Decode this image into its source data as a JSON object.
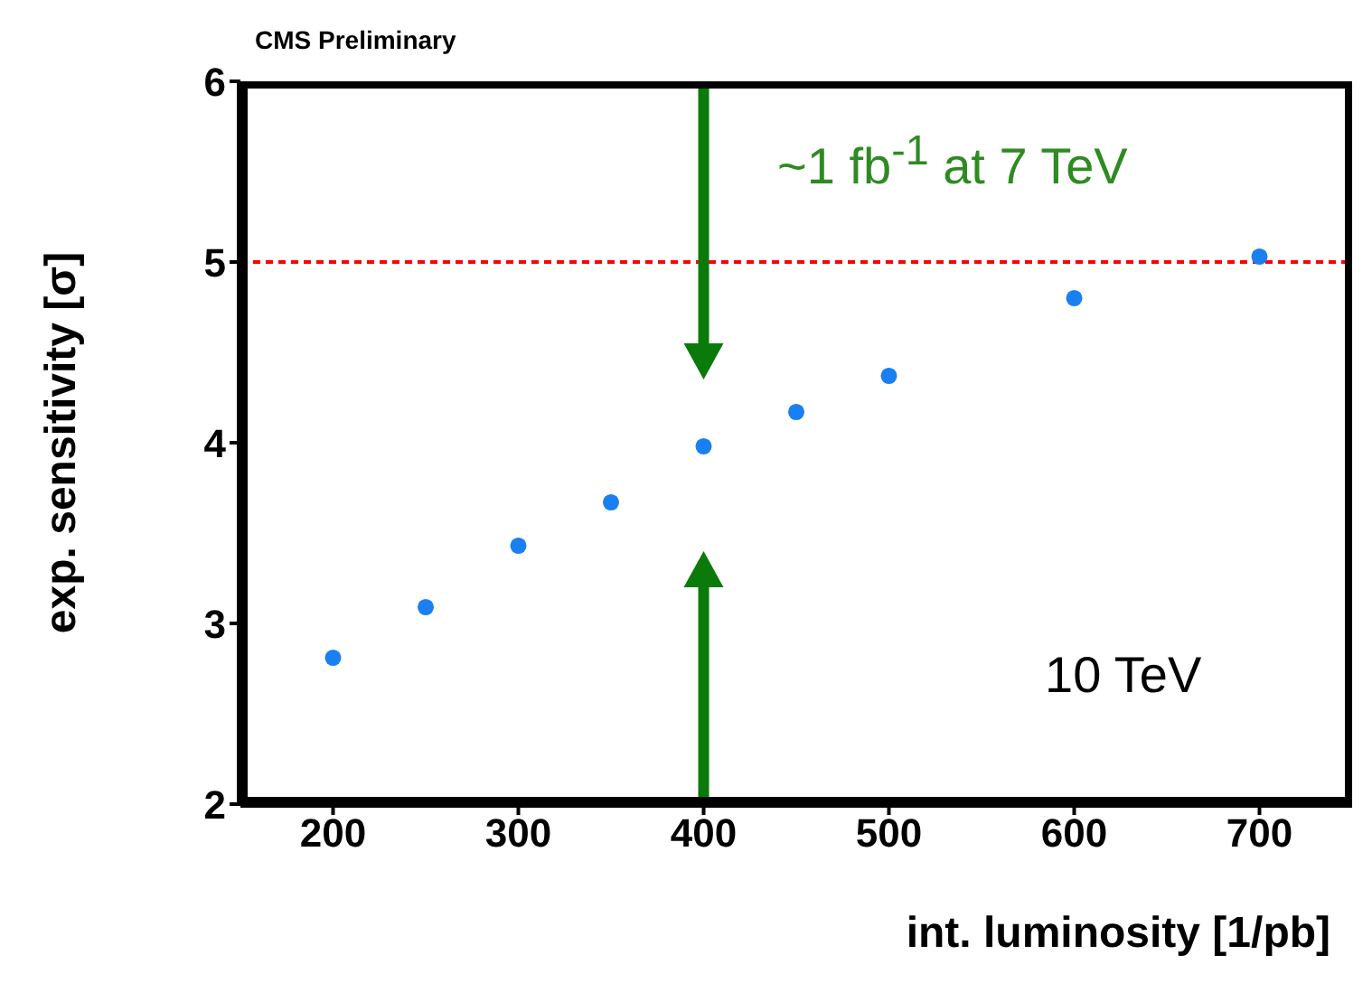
{
  "chart_data": {
    "type": "scatter",
    "xlabel": "int. luminosity [1/pb]",
    "ylabel": "exp. sensitivity [σ]",
    "annotations": [
      "CMS Preliminary",
      "~1 fb$^{-1}$ at 7 TeV",
      "10 TeV"
    ],
    "x": [
      200,
      250,
      300,
      350,
      400,
      450,
      500,
      600,
      700
    ],
    "series": [
      {
        "color": "#1a7ff0",
        "values": [
          2.81,
          3.09,
          3.43,
          3.67,
          3.98,
          4.17,
          4.37,
          4.8,
          5.03
        ]
      }
    ],
    "xlim": [
      150,
      750
    ],
    "xticks": [
      200,
      300,
      400,
      500,
      600,
      700
    ],
    "ylim": [
      2,
      6
    ],
    "yticks": [
      2,
      3,
      4,
      5,
      6
    ],
    "ref_lines": [
      {
        "axis": "y",
        "value": 5,
        "label": null,
        "color": "#ff0000",
        "line_style": "dashed"
      }
    ],
    "marker": "circle",
    "grid": false,
    "legend": false
  }
}
